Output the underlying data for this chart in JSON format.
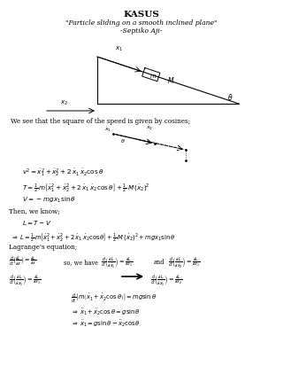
{
  "title": "KASUS",
  "subtitle": "\"Particle sliding on a smooth inclined plane\"",
  "author": "-Septiko Aji-",
  "bg_color": "#ffffff",
  "text_color": "#000000"
}
